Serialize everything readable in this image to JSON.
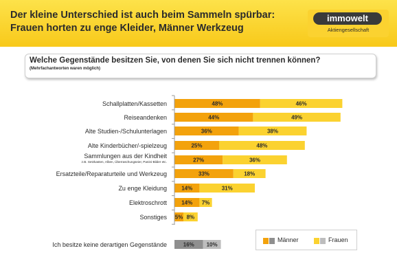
{
  "header": {
    "title_line1": "Der kleine Unterschied ist auch beim Sammeln spürbar:",
    "title_line2": "Frauen horten zu enge Kleider, Männer Werkzeug"
  },
  "logo": {
    "brand": "immowelt",
    "subtitle": "Aktiengesellschaft"
  },
  "colors": {
    "header_yellow": "#f8c91a",
    "maenner_orange": "#f3a20c",
    "frauen_yellow": "#fbd230",
    "maenner_grey": "#8f8f8f",
    "frauen_grey": "#bdbdbd"
  },
  "chart_data": {
    "type": "bar",
    "orientation": "horizontal",
    "stacked": true,
    "title": "Welche Gegenstände besitzen Sie, von denen Sie sich nicht trennen können?",
    "subtitle": "(Mehrfachantworten waren möglich)",
    "categories": [
      "Schallplatten/Kassetten",
      "Reiseandenken",
      "Alte Studien-/Schulunterlagen",
      "Alte Kinderbücher/-spielzeug",
      "Sammlungen aus der Kindheit",
      "Ersatzteile/Reparaturteile und Werkzeug",
      "Zu enge Kleidung",
      "Elektroschrott",
      "Sonstiges",
      "Ich besitze keine derartigen Gegenstände"
    ],
    "category_notes": [
      "",
      "",
      "",
      "",
      "z.B. Setzkasten, Alben, Überraschungseier, Panini-Bilder etc.",
      "",
      "",
      "",
      "",
      ""
    ],
    "series": [
      {
        "name": "Männer",
        "values": [
          48,
          44,
          36,
          25,
          27,
          33,
          14,
          14,
          5,
          16
        ]
      },
      {
        "name": "Frauen",
        "values": [
          46,
          49,
          38,
          48,
          36,
          18,
          31,
          7,
          8,
          10
        ]
      }
    ],
    "value_labels": [
      [
        "48%",
        "46%"
      ],
      [
        "44%",
        "49%"
      ],
      [
        "36%",
        "38%"
      ],
      [
        "25%",
        "48%"
      ],
      [
        "27%",
        "36%"
      ],
      [
        "33%",
        "18%"
      ],
      [
        "14%",
        "31%"
      ],
      [
        "14%",
        "7%"
      ],
      [
        "5%",
        "8%"
      ],
      [
        "16%",
        "10%"
      ]
    ],
    "grey_rows": [
      9
    ],
    "legend": [
      "Männer",
      "Frauen"
    ],
    "legend_position": "bottom-right",
    "grid": false,
    "unit": "%"
  }
}
